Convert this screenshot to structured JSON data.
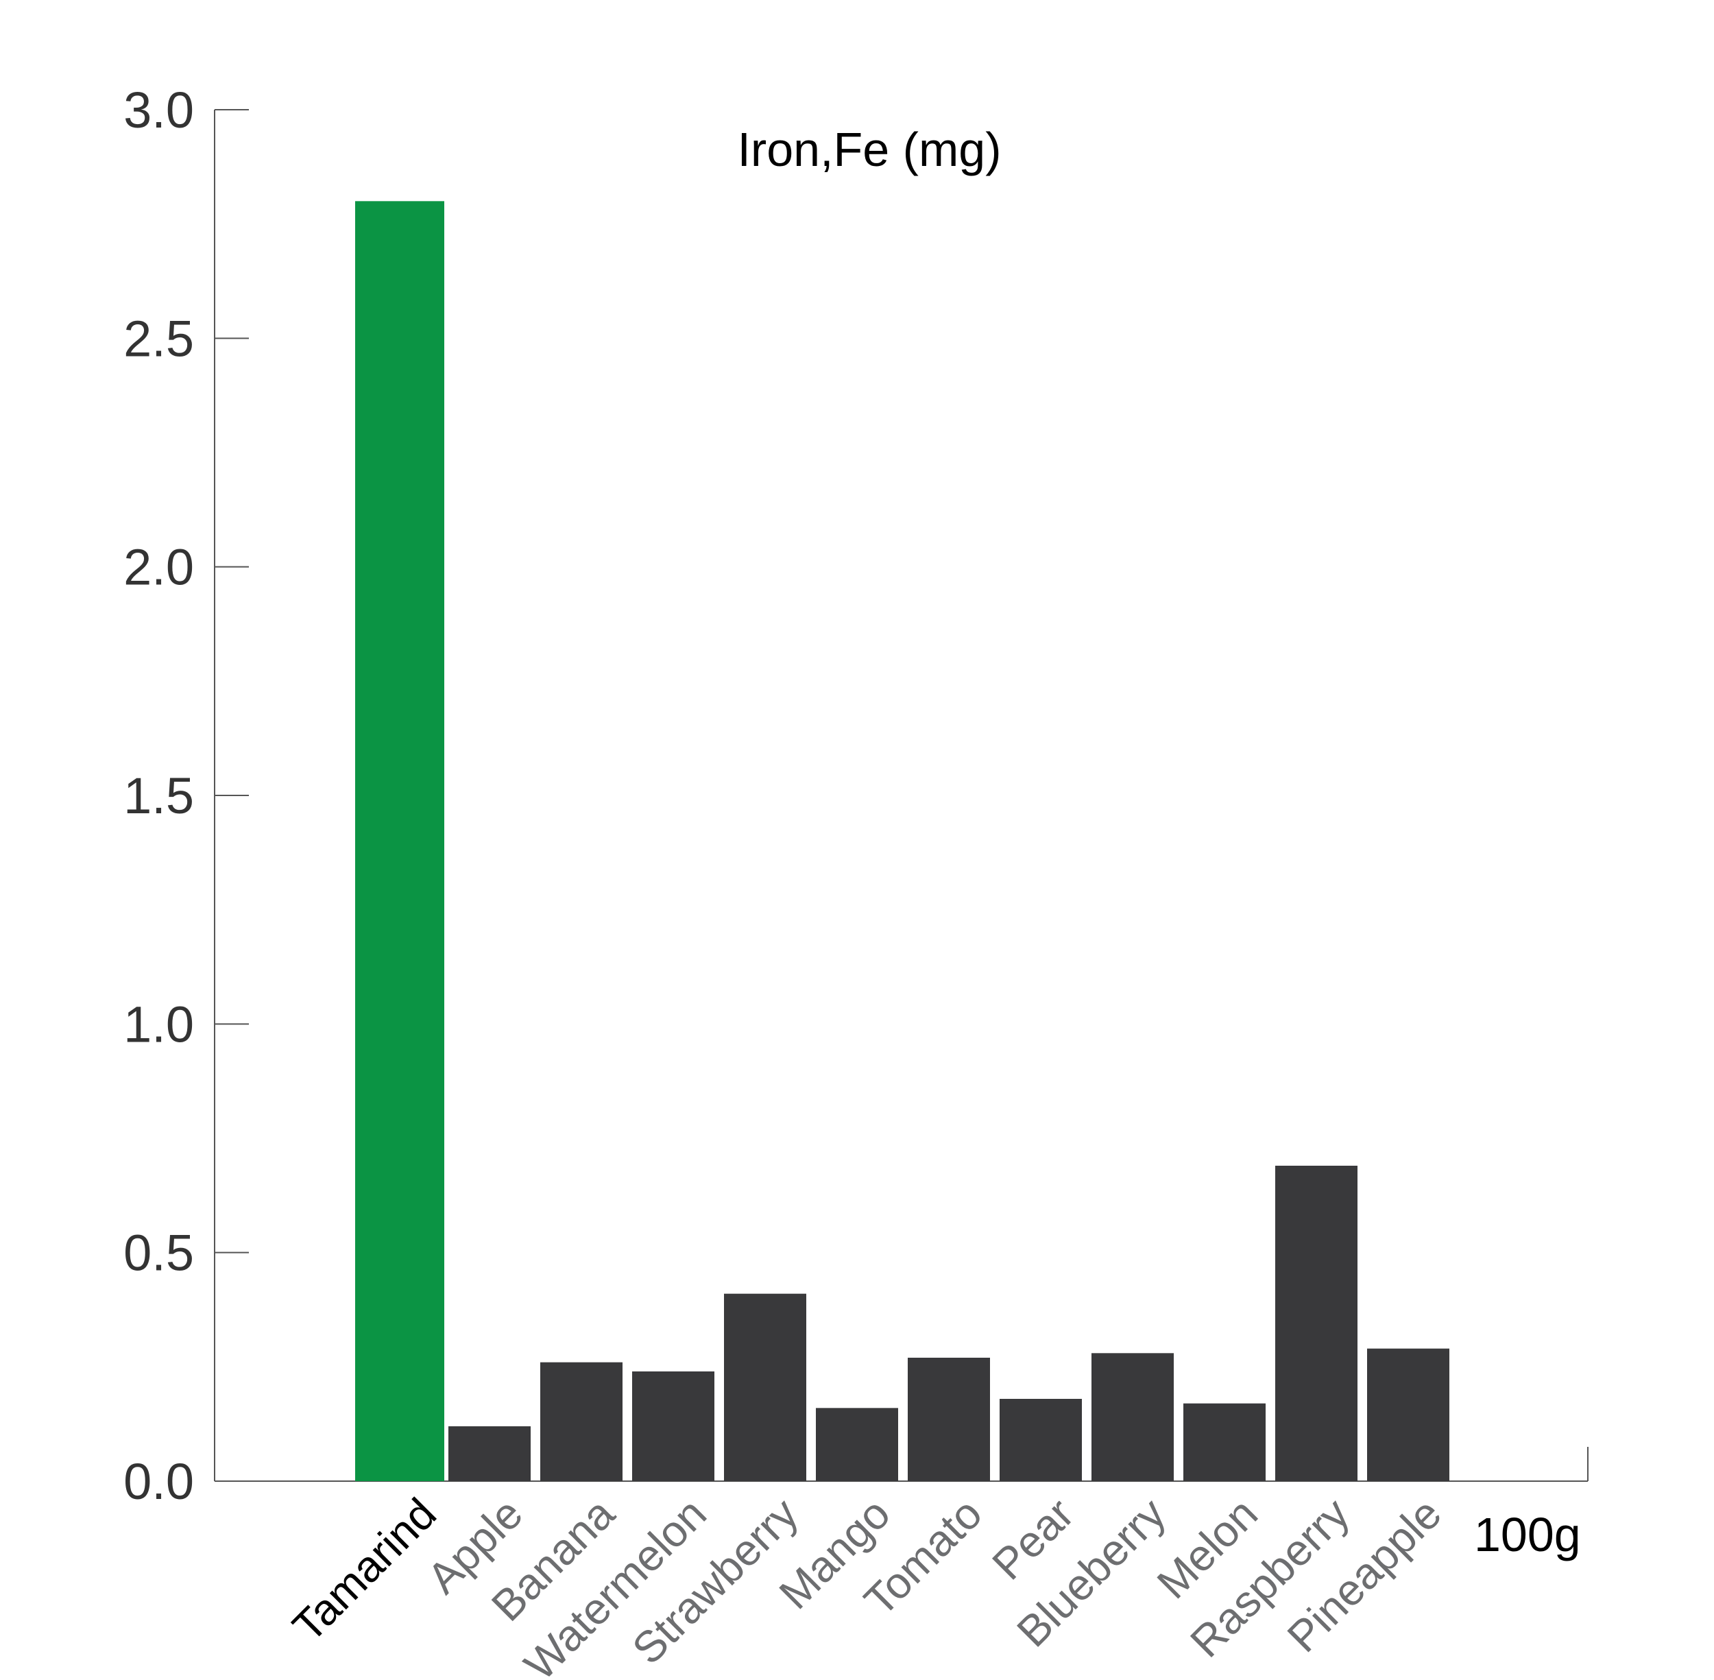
{
  "chart_data": {
    "type": "bar",
    "title": "Iron,Fe (mg)",
    "unit_label": "100g",
    "categories": [
      "Tamarind",
      "Apple",
      "Banana",
      "Watermelon",
      "Strawberry",
      "Mango",
      "Tomato",
      "Pear",
      "Blueberry",
      "Melon",
      "Raspberry",
      "Pineapple"
    ],
    "values": [
      2.8,
      0.12,
      0.26,
      0.24,
      0.41,
      0.16,
      0.27,
      0.18,
      0.28,
      0.17,
      0.69,
      0.29
    ],
    "highlight_index": 0,
    "ylim": [
      0,
      3.0
    ],
    "yticks": [
      "0.0",
      "0.5",
      "1.0",
      "1.5",
      "2.0",
      "2.5",
      "3.0"
    ],
    "grid": false,
    "colors": {
      "highlight": "#0b9444",
      "bar": "#39393b",
      "highlight_label": "#000000",
      "label": "#6d6e70",
      "axis": "#555555"
    }
  }
}
